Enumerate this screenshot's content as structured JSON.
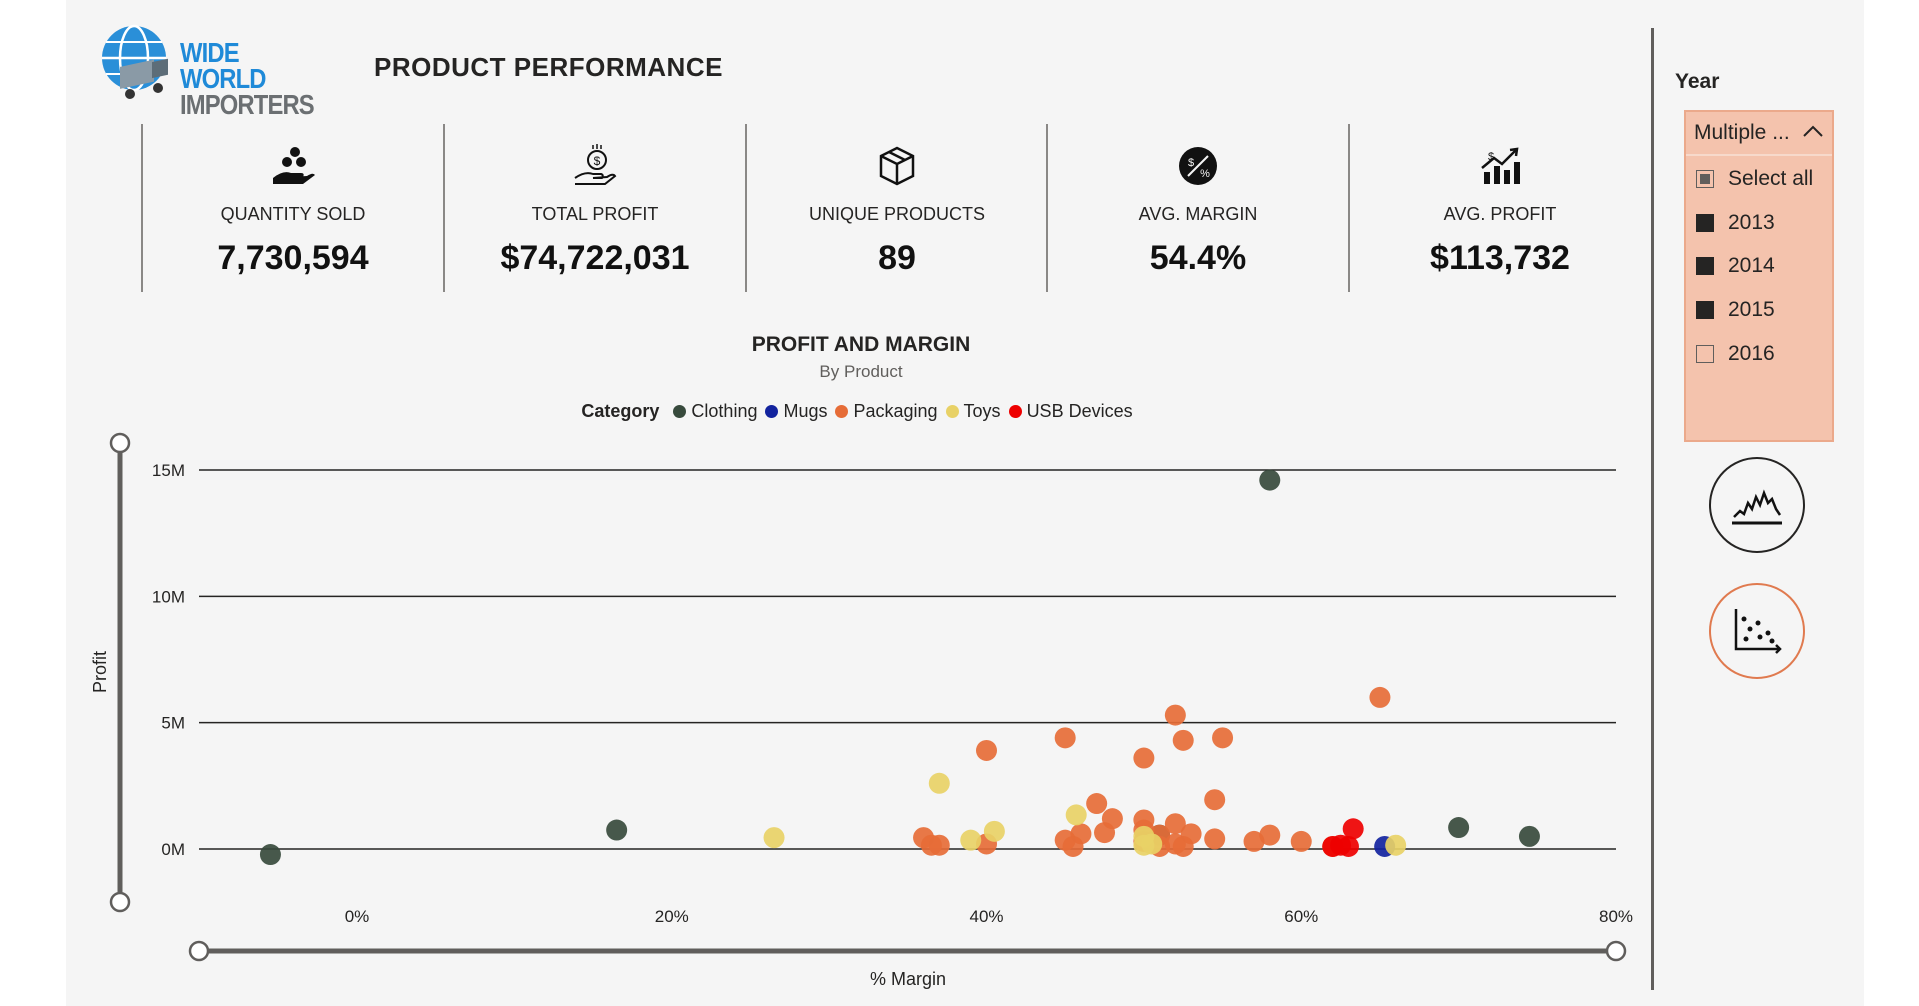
{
  "logo": {
    "line1": "WIDE WORLD",
    "line2": "IMPORTERS"
  },
  "page_title": "PRODUCT PERFORMANCE",
  "kpis": [
    {
      "icon": "hand-coins-icon",
      "label": "QUANTITY SOLD",
      "value": "7,730,594"
    },
    {
      "icon": "hand-dollar-icon",
      "label": "TOTAL PROFIT",
      "value": "$74,722,031"
    },
    {
      "icon": "box-icon",
      "label": "UNIQUE PRODUCTS",
      "value": "89"
    },
    {
      "icon": "percent-circle-icon",
      "label": "AVG. MARGIN",
      "value": "54.4%"
    },
    {
      "icon": "growth-chart-icon",
      "label": "AVG. PROFIT",
      "value": "$113,732"
    }
  ],
  "slicer": {
    "title": "Year",
    "selected": "Multiple ...",
    "options": [
      {
        "label": "Select all",
        "state": "partial"
      },
      {
        "label": "2013",
        "state": "checked"
      },
      {
        "label": "2014",
        "state": "checked"
      },
      {
        "label": "2015",
        "state": "checked"
      },
      {
        "label": "2016",
        "state": "unchecked"
      }
    ]
  },
  "buttons": {
    "line_chart": "line-chart-icon",
    "scatter_chart": "scatter-chart-icon"
  },
  "chart_data": {
    "type": "scatter",
    "title": "PROFIT AND MARGIN",
    "subtitle": "By Product",
    "legend_title": "Category",
    "xlabel": "% Margin",
    "ylabel": "Profit",
    "xlim": [
      -0.1,
      0.8
    ],
    "ylim": [
      -1.5,
      16
    ],
    "x_ticks": [
      0,
      0.2,
      0.4,
      0.6,
      0.8
    ],
    "x_tick_labels": [
      "0%",
      "20%",
      "40%",
      "60%",
      "80%"
    ],
    "y_ticks": [
      0,
      5,
      10,
      15
    ],
    "y_tick_labels": [
      "0M",
      "5M",
      "10M",
      "15M"
    ],
    "grid": true,
    "series": [
      {
        "name": "Clothing",
        "color": "#374a3c",
        "points": [
          [
            -0.055,
            -0.22
          ],
          [
            0.165,
            0.75
          ],
          [
            0.58,
            14.6
          ],
          [
            0.7,
            0.85
          ],
          [
            0.745,
            0.5
          ],
          [
            0.51,
            0.55
          ]
        ]
      },
      {
        "name": "Mugs",
        "color": "#12239e",
        "points": [
          [
            0.653,
            0.1
          ]
        ]
      },
      {
        "name": "Packaging",
        "color": "#e66c37",
        "points": [
          [
            0.4,
            3.9
          ],
          [
            0.45,
            4.4
          ],
          [
            0.5,
            3.6
          ],
          [
            0.52,
            5.3
          ],
          [
            0.525,
            4.3
          ],
          [
            0.55,
            4.4
          ],
          [
            0.65,
            6.0
          ],
          [
            0.545,
            1.95
          ],
          [
            0.47,
            1.8
          ],
          [
            0.48,
            1.2
          ],
          [
            0.5,
            1.15
          ],
          [
            0.52,
            1.0
          ],
          [
            0.46,
            0.6
          ],
          [
            0.475,
            0.65
          ],
          [
            0.5,
            0.75
          ],
          [
            0.51,
            0.55
          ],
          [
            0.53,
            0.6
          ],
          [
            0.545,
            0.4
          ],
          [
            0.57,
            0.3
          ],
          [
            0.58,
            0.55
          ],
          [
            0.6,
            0.3
          ],
          [
            0.36,
            0.45
          ],
          [
            0.365,
            0.15
          ],
          [
            0.37,
            0.15
          ],
          [
            0.4,
            0.2
          ],
          [
            0.45,
            0.35
          ],
          [
            0.455,
            0.1
          ],
          [
            0.51,
            0.1
          ],
          [
            0.52,
            0.2
          ],
          [
            0.525,
            0.1
          ],
          [
            0.5,
            0.3
          ],
          [
            0.62,
            0.1
          ]
        ]
      },
      {
        "name": "Toys",
        "color": "#e8d166",
        "points": [
          [
            0.265,
            0.45
          ],
          [
            0.37,
            2.6
          ],
          [
            0.457,
            1.35
          ],
          [
            0.39,
            0.35
          ],
          [
            0.405,
            0.7
          ],
          [
            0.5,
            0.5
          ],
          [
            0.505,
            0.2
          ],
          [
            0.66,
            0.15
          ],
          [
            0.5,
            0.15
          ]
        ]
      },
      {
        "name": "USB Devices",
        "color": "#ee0000",
        "points": [
          [
            0.633,
            0.8
          ],
          [
            0.62,
            0.1
          ],
          [
            0.625,
            0.15
          ],
          [
            0.63,
            0.1
          ]
        ]
      }
    ]
  }
}
